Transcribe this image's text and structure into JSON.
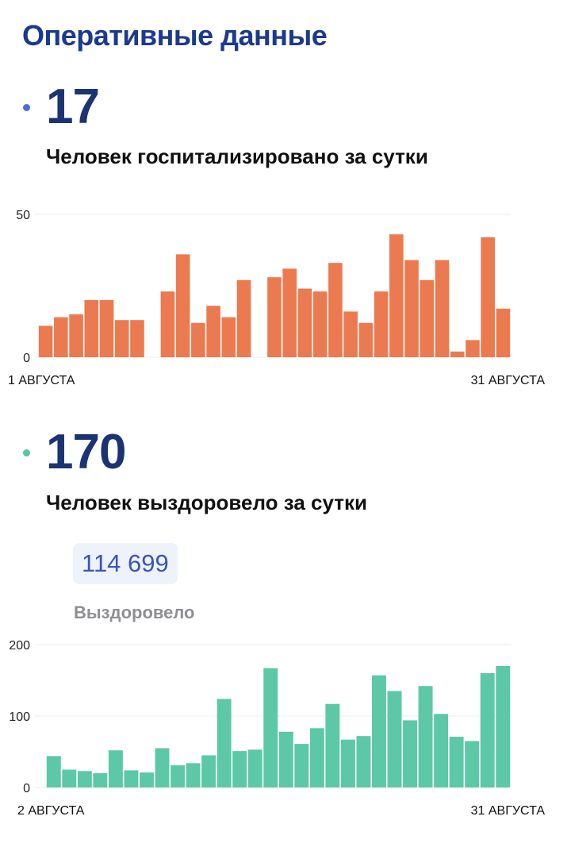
{
  "page": {
    "title": "Оперативные данные"
  },
  "hospitalized": {
    "value": "17",
    "caption": "Человек госпитализировано за сутки",
    "dot_color": "#4a6ee0"
  },
  "recovered": {
    "value": "170",
    "caption": "Человек выздоровело за сутки",
    "dot_color": "#57c7a0",
    "total_value": "114 699",
    "total_label": "Выздоровело"
  },
  "chart_data": [
    {
      "type": "bar",
      "color": "#ec7a50",
      "ylim": [
        0,
        50
      ],
      "yticks": [
        0,
        50
      ],
      "grid": true,
      "start_label": "1 АВГУСТА",
      "end_label": "31 АВГУСТА",
      "x": [
        1,
        2,
        3,
        4,
        5,
        6,
        7,
        8,
        9,
        10,
        11,
        12,
        13,
        14,
        15,
        16,
        17,
        18,
        19,
        20,
        21,
        22,
        23,
        24,
        25,
        26,
        27,
        28,
        29,
        30,
        31
      ],
      "values": [
        11,
        14,
        15,
        20,
        20,
        13,
        13,
        null,
        23,
        36,
        12,
        18,
        14,
        27,
        null,
        28,
        31,
        24,
        23,
        33,
        16,
        12,
        23,
        43,
        34,
        27,
        34,
        2,
        6,
        42,
        17
      ]
    },
    {
      "type": "bar",
      "color": "#5cc8a6",
      "ylim": [
        0,
        200
      ],
      "yticks": [
        0,
        100,
        200
      ],
      "grid": true,
      "start_label": "2 АВГУСТА",
      "end_label": "31 АВГУСТА",
      "x": [
        2,
        3,
        4,
        5,
        6,
        7,
        8,
        9,
        10,
        11,
        12,
        13,
        14,
        15,
        16,
        17,
        18,
        19,
        20,
        21,
        22,
        23,
        24,
        25,
        26,
        27,
        28,
        29,
        30,
        31
      ],
      "values": [
        44,
        25,
        23,
        20,
        52,
        24,
        21,
        55,
        31,
        34,
        45,
        124,
        51,
        53,
        167,
        78,
        61,
        83,
        117,
        67,
        72,
        157,
        135,
        94,
        142,
        103,
        71,
        65,
        160,
        170
      ]
    }
  ]
}
